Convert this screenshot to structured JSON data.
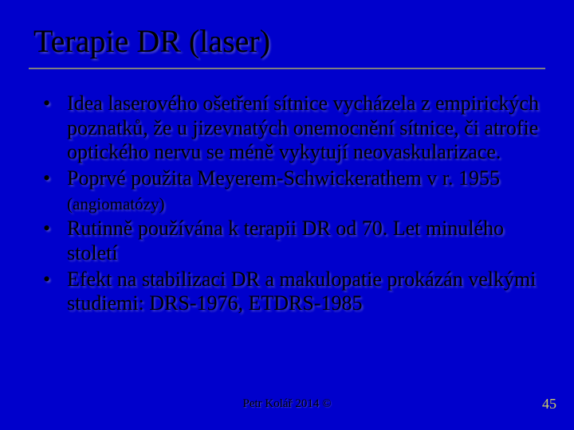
{
  "slide": {
    "background_color": "#0000cc",
    "title": "Terapie DR (laser)",
    "title_fontsize": 40,
    "title_color": "#000000",
    "divider_color": "#808080",
    "bullets": [
      {
        "text": "Idea laserového ošetření sítnice vycházela z empirických poznatků, že u jizevnatých onemocnění sítnice, či atrofie optického nervu se méně vykytují neovaskularizace."
      },
      {
        "text": "Poprvé použita Meyerem-Schwickerathem v r. 1955 ",
        "suffix_small": "(angiomatózy)"
      },
      {
        "text": "Rutinně používána k terapii DR od 70. Let minulého století"
      },
      {
        "text": "Efekt na stabilizaci DR a makulopatie prokázán velkými studiemi: DRS-1976, ETDRS-1985"
      }
    ],
    "bullet_fontsize": 26,
    "bullet_small_fontsize": 21,
    "footer_credit": "Petr Kolář 2014 ©",
    "footer_fontsize": 15,
    "page_number": "45",
    "page_number_color": "#cccc66",
    "page_number_fontsize": 18
  }
}
